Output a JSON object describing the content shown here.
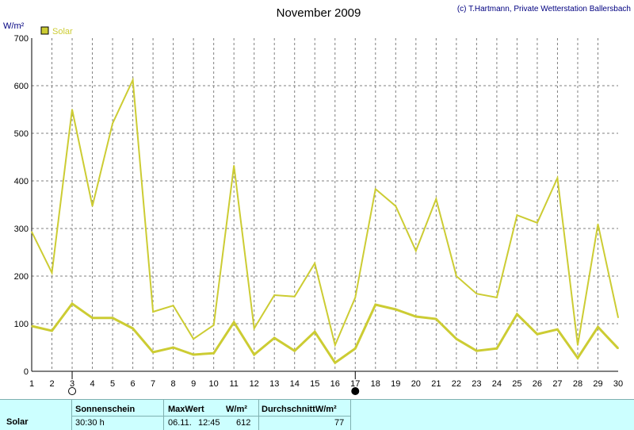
{
  "chart_data": {
    "type": "line",
    "title": "November 2009",
    "credit": "(c) T.Hartmann, Private Wetterstation Ballersbach",
    "ylabel": "W/m²",
    "ylim": [
      0,
      700
    ],
    "yticks": [
      0,
      100,
      200,
      300,
      400,
      500,
      600,
      700
    ],
    "xlim": [
      1,
      30
    ],
    "x": [
      1,
      2,
      3,
      4,
      5,
      6,
      7,
      8,
      9,
      10,
      11,
      12,
      13,
      14,
      15,
      16,
      17,
      18,
      19,
      20,
      21,
      22,
      23,
      24,
      25,
      26,
      27,
      28,
      29,
      30
    ],
    "grid": true,
    "legend_position": "top-left",
    "legend_label": "Solar",
    "color": "#cccc33",
    "series": [
      {
        "role": "max",
        "values": [
          293,
          207,
          550,
          347,
          521,
          612,
          125,
          138,
          68,
          97,
          432,
          90,
          160,
          157,
          227,
          55,
          155,
          383,
          347,
          253,
          362,
          200,
          163,
          155,
          328,
          312,
          406,
          55,
          309,
          113
        ],
        "stroke": 2
      },
      {
        "role": "avg",
        "values": [
          95,
          85,
          142,
          112,
          112,
          90,
          40,
          50,
          35,
          38,
          103,
          35,
          70,
          43,
          83,
          18,
          48,
          140,
          130,
          115,
          110,
          68,
          43,
          48,
          120,
          78,
          88,
          28,
          93,
          48
        ],
        "stroke": 3
      }
    ],
    "markers": [
      {
        "day": 3,
        "symbol": "full-moon"
      },
      {
        "day": 17,
        "symbol": "new-moon"
      }
    ]
  },
  "stats": {
    "row_label": "Solar",
    "sun_header": "Sonnenschein",
    "sun_value": "30:30 h",
    "max_header": "MaxWert",
    "max_unit": "W/m²",
    "max_date": "06.11.",
    "max_time": "12:45",
    "max_value": "612",
    "avg_header": "DurchschnittW/m²",
    "avg_value": "77"
  }
}
